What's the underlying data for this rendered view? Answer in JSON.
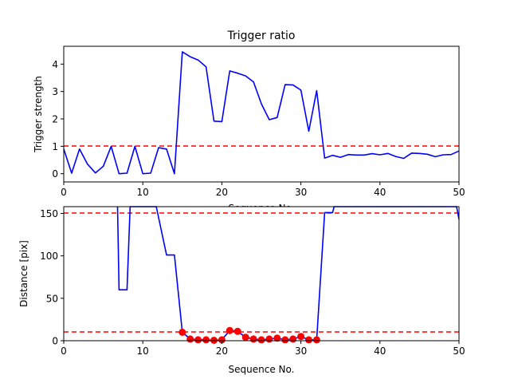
{
  "chart_data": [
    {
      "type": "line",
      "title": "Trigger ratio",
      "xlabel": "Sequence No.",
      "ylabel": "Trigger strength",
      "xlim": [
        0,
        50
      ],
      "ylim": [
        -0.3,
        4.65
      ],
      "xticks": [
        0,
        10,
        20,
        30,
        40,
        50
      ],
      "yticks": [
        0,
        1,
        2,
        3,
        4
      ],
      "grid": false,
      "colors": {
        "line": "#0000ff",
        "threshold": "#ff0000"
      },
      "series": [
        {
          "x": [
            0,
            1,
            2,
            3,
            4,
            5,
            6,
            7,
            8,
            9,
            10,
            11,
            12,
            13,
            14,
            15,
            16,
            17,
            18,
            19,
            20,
            21,
            22,
            23,
            24,
            25,
            26,
            27,
            28,
            29,
            30,
            31,
            32,
            33,
            34,
            35,
            36,
            37,
            38,
            39,
            40,
            41,
            42,
            43,
            44,
            45,
            46,
            47,
            48,
            49,
            50
          ],
          "y": [
            0.9,
            0.02,
            0.9,
            0.35,
            0.03,
            0.27,
            1.0,
            0.0,
            0.02,
            1.0,
            0.0,
            0.02,
            0.95,
            0.9,
            0.0,
            4.45,
            4.27,
            4.15,
            3.9,
            1.92,
            1.9,
            3.75,
            3.67,
            3.57,
            3.35,
            2.55,
            1.97,
            2.05,
            3.25,
            3.24,
            3.05,
            1.55,
            3.03,
            0.57,
            0.67,
            0.6,
            0.7,
            0.68,
            0.68,
            0.73,
            0.69,
            0.74,
            0.63,
            0.56,
            0.75,
            0.74,
            0.71,
            0.62,
            0.69,
            0.7,
            0.83
          ]
        }
      ],
      "hlines": [
        1
      ]
    },
    {
      "type": "line",
      "title": "",
      "xlabel": "Sequence No.",
      "ylabel": "Distance [pix]",
      "xlim": [
        0,
        50
      ],
      "ylim": [
        0,
        158
      ],
      "xticks": [
        0,
        10,
        20,
        30,
        40,
        50
      ],
      "yticks": [
        0,
        50,
        100,
        150
      ],
      "grid": false,
      "colors": {
        "line": "#0000ff",
        "marker": "#ff0000",
        "threshold": "#ff0000"
      },
      "series": [
        {
          "x": [
            6.8,
            7,
            8,
            8.4,
            11.7,
            13,
            14,
            15,
            16,
            17,
            18,
            19,
            20,
            21,
            22,
            23,
            24,
            25,
            26,
            27,
            28,
            29,
            30,
            31,
            32,
            33,
            34,
            34.2,
            49.7,
            50
          ],
          "y": [
            158,
            60,
            60,
            158,
            158,
            101,
            101,
            10,
            2,
            1,
            1,
            0.5,
            1,
            12,
            11,
            4,
            2,
            1,
            2,
            3,
            1,
            2,
            5,
            1,
            1,
            151,
            151,
            158,
            158,
            143
          ]
        },
        {
          "x": [
            15,
            16,
            17,
            18,
            19,
            20,
            21,
            22,
            23,
            24,
            25,
            26,
            27,
            28,
            29,
            30,
            31,
            32
          ],
          "y": [
            10,
            2,
            1,
            1,
            0.5,
            1,
            12,
            11,
            4,
            2,
            1,
            2,
            3,
            1,
            2,
            5,
            1,
            1
          ]
        }
      ],
      "hlines": [
        10,
        151
      ]
    }
  ]
}
